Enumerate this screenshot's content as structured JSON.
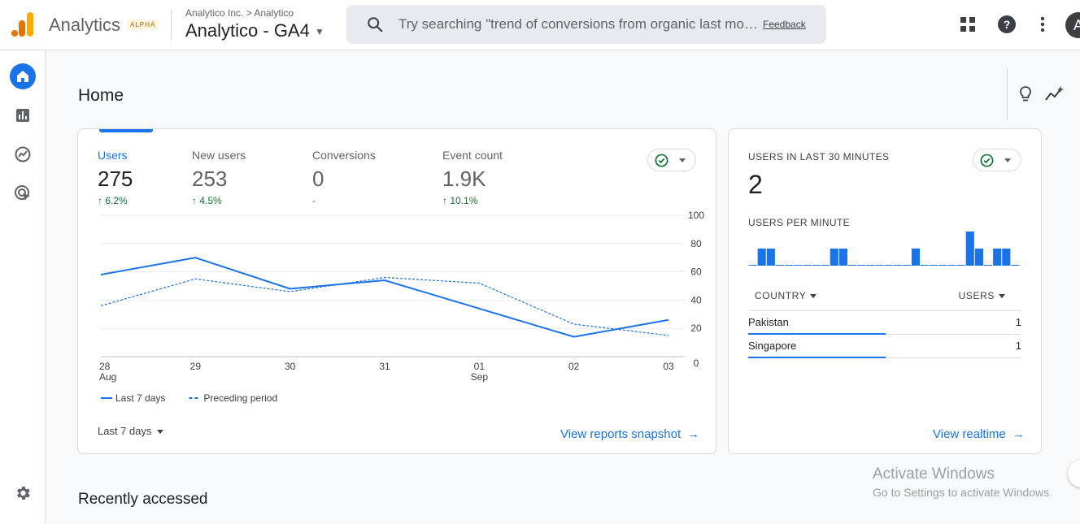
{
  "topbar": {
    "app_name": "Analytics",
    "badge": "ALPHA",
    "breadcrumb": "Analytico Inc. > Analytico",
    "property": "Analytico - GA4",
    "search_placeholder": "Try searching \"trend of conversions from organic last month\"",
    "feedback": "Feedback",
    "avatar_initial": "A",
    "icons": [
      "apps-icon",
      "help-icon",
      "more-vert-icon"
    ]
  },
  "nav": {
    "items": [
      {
        "name": "home",
        "icon": "home-icon",
        "active": true
      },
      {
        "name": "reports",
        "icon": "bar-chart-icon",
        "active": false
      },
      {
        "name": "explore",
        "icon": "explore-icon",
        "active": false
      },
      {
        "name": "advertising",
        "icon": "target-cursor-icon",
        "active": false
      }
    ],
    "settings_icon": "gear-icon"
  },
  "page": {
    "title": "Home",
    "recently_accessed": "Recently accessed",
    "right_icons": [
      "lightbulb-icon",
      "insights-icon"
    ]
  },
  "overview": {
    "metrics": [
      {
        "label": "Users",
        "value": "275",
        "delta": "6.2%",
        "arrow": "↑"
      },
      {
        "label": "New users",
        "value": "253",
        "delta": "4.5%",
        "arrow": "↑"
      },
      {
        "label": "Conversions",
        "value": "0",
        "delta": "-",
        "arrow": ""
      },
      {
        "label": "Event count",
        "value": "1.9K",
        "delta": "10.1%",
        "arrow": "↑"
      }
    ],
    "date_range": "Last 7 days",
    "view_link": "View reports snapshot",
    "accent": "#1a73e8",
    "positive_color": "#137333"
  },
  "chart_data": {
    "type": "line",
    "x": [
      "28 Aug",
      "29",
      "30",
      "31",
      "01 Sep",
      "02",
      "03"
    ],
    "x_tick_labels": [
      {
        "top": "28",
        "bottom": "Aug"
      },
      {
        "top": "29",
        "bottom": ""
      },
      {
        "top": "30",
        "bottom": ""
      },
      {
        "top": "31",
        "bottom": ""
      },
      {
        "top": "01",
        "bottom": "Sep"
      },
      {
        "top": "02",
        "bottom": ""
      },
      {
        "top": "03",
        "bottom": ""
      }
    ],
    "y_ticks": [
      0,
      20,
      40,
      60,
      80,
      100
    ],
    "ylim": [
      0,
      100
    ],
    "grid": true,
    "legend_placement": "bottom-left",
    "series": [
      {
        "name": "Last 7 days",
        "values": [
          58,
          70,
          48,
          54,
          34,
          14,
          26
        ],
        "style": "solid",
        "color": "#1a73e8"
      },
      {
        "name": "Preceding period",
        "values": [
          36,
          55,
          46,
          56,
          52,
          23,
          15
        ],
        "style": "dashed",
        "color": "#1a73e8"
      }
    ]
  },
  "realtime": {
    "title": "USERS IN LAST 30 MINUTES",
    "value": "2",
    "subtitle": "USERS PER MINUTE",
    "per_minute": [
      0,
      1,
      1,
      0,
      0,
      0,
      0,
      0,
      0,
      1,
      1,
      0,
      0,
      0,
      0,
      0,
      0,
      0,
      1,
      0,
      0,
      0,
      0,
      0,
      2,
      1,
      0,
      1,
      1,
      0
    ],
    "table": {
      "col_country": "COUNTRY",
      "col_users": "USERS",
      "rows": [
        {
          "country": "Pakistan",
          "users": "1",
          "share": 0.5
        },
        {
          "country": "Singapore",
          "users": "1",
          "share": 0.5
        }
      ]
    },
    "view_link": "View realtime"
  },
  "watermark": {
    "line1": "Activate Windows",
    "line2": "Go to Settings to activate Windows."
  }
}
